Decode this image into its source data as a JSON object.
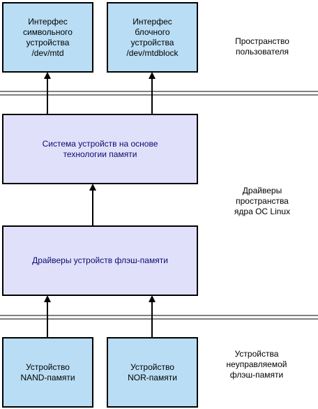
{
  "boxes": {
    "char_interface": "Интерфес\nсимвольного\nустройства\n/dev/mtd",
    "block_interface": "Интерфес\nблочного\nустройства\n/dev/mtdblock",
    "memory_system": "Система устройств на основе\nтехнологии памяти",
    "flash_drivers": "Драйверы устройств флэш-памяти",
    "nand_device": "Устройство\nNAND-памяти",
    "nor_device": "Устройство\nNOR-памяти"
  },
  "zones": {
    "user_space": "Пространство\nпользователя",
    "kernel_drivers": "Драйверы\nпространства\nядра ОС Linux",
    "unmanaged_flash": "Устройства\nнеуправляемой\nфлэш-памяти"
  },
  "colors": {
    "interface_fill": "#b9ddf4",
    "layer_fill": "#e1e0fb",
    "layer_text": "#0a0a6e",
    "stroke": "#000000"
  }
}
